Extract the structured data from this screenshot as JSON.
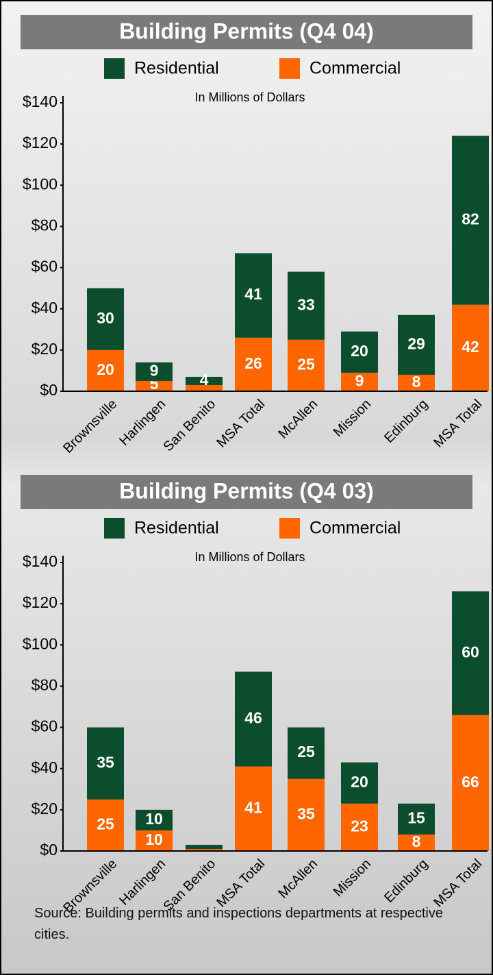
{
  "chart_data": [
    {
      "type": "stacked-bar",
      "title": "Building Permits (Q4 04)",
      "subtitle": "In Millions of Dollars",
      "categories": [
        "Brownsville",
        "Harlingen",
        "San Benito",
        "MSA Total",
        "McAllen",
        "Mission",
        "Edinburg",
        "MSA Total"
      ],
      "series": [
        {
          "name": "Residential",
          "color": "#0b4d2c",
          "values": [
            30,
            9,
            4,
            41,
            33,
            20,
            29,
            82
          ]
        },
        {
          "name": "Commercial",
          "color": "#ff6600",
          "values": [
            20,
            5,
            3,
            26,
            25,
            9,
            8,
            42
          ]
        }
      ],
      "ylim": [
        0,
        140
      ],
      "yticks": [
        {
          "value": 0,
          "label": "$0"
        },
        {
          "value": 20,
          "label": "$20"
        },
        {
          "value": 40,
          "label": "$40"
        },
        {
          "value": 60,
          "label": "$60"
        },
        {
          "value": 80,
          "label": "$80"
        },
        {
          "value": 100,
          "label": "$100"
        },
        {
          "value": 120,
          "label": "$120"
        },
        {
          "value": 140,
          "label": "$140"
        }
      ]
    },
    {
      "type": "stacked-bar",
      "title": "Building Permits (Q4 03)",
      "subtitle": "In Millions of Dollars",
      "categories": [
        "Brownsville",
        "Harlingen",
        "San Benito",
        "MSA Total",
        "McAllen",
        "Mission",
        "Edinburg",
        "MSA Total"
      ],
      "series": [
        {
          "name": "Residential",
          "color": "#0b4d2c",
          "values": [
            35,
            10,
            2,
            46,
            25,
            20,
            15,
            60
          ]
        },
        {
          "name": "Commercial",
          "color": "#ff6600",
          "values": [
            25,
            10,
            1,
            41,
            35,
            23,
            8,
            66
          ]
        }
      ],
      "ylim": [
        0,
        140
      ],
      "yticks": [
        {
          "value": 0,
          "label": "$0"
        },
        {
          "value": 20,
          "label": "$20"
        },
        {
          "value": 40,
          "label": "$40"
        },
        {
          "value": 60,
          "label": "$60"
        },
        {
          "value": 80,
          "label": "$80"
        },
        {
          "value": 100,
          "label": "$100"
        },
        {
          "value": 120,
          "label": "$120"
        },
        {
          "value": 140,
          "label": "$140"
        }
      ]
    }
  ],
  "source": "Source: Building permits and inspections departments at respective cities."
}
